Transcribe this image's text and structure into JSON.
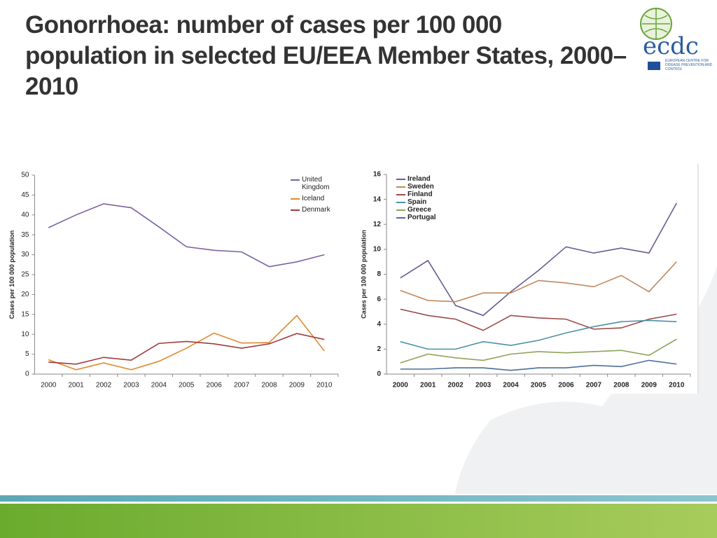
{
  "title": "Gonorrhoea: number of cases per 100 000 population in selected EU/EEA Member States, 2000–2010",
  "logo": {
    "text": "ecdc",
    "subtitle": "EUROPEAN CENTRE FOR DISEASE PREVENTION AND CONTROL"
  },
  "chart_data": [
    {
      "type": "line",
      "ylabel": "Cases per 100 000 population",
      "categories": [
        "2000",
        "2001",
        "2002",
        "2003",
        "2004",
        "2005",
        "2006",
        "2007",
        "2008",
        "2009",
        "2010"
      ],
      "ylim": [
        0,
        50
      ],
      "yticks": [
        0,
        5,
        10,
        15,
        20,
        25,
        30,
        35,
        40,
        45,
        50
      ],
      "legend": "upper right",
      "series": [
        {
          "name": "United Kingdom",
          "color": "#7b63a3",
          "values": [
            36.8,
            40,
            42.8,
            41.8,
            37,
            32,
            31.1,
            30.7,
            27,
            28.2,
            30
          ]
        },
        {
          "name": "Iceland",
          "color": "#e08a2e",
          "values": [
            3.6,
            1.1,
            2.8,
            1.1,
            3.2,
            6.5,
            10.3,
            7.8,
            7.9,
            14.7,
            5.8
          ]
        },
        {
          "name": "Denmark",
          "color": "#a33b3b",
          "values": [
            3,
            2.5,
            4.2,
            3.5,
            7.7,
            8.2,
            7.6,
            6.5,
            7.6,
            10.2,
            8.7
          ]
        }
      ]
    },
    {
      "type": "line",
      "ylabel": "Cases per 100 000 population",
      "categories": [
        "2000",
        "2001",
        "2002",
        "2003",
        "2004",
        "2005",
        "2006",
        "2007",
        "2008",
        "2009",
        "2010"
      ],
      "ylim": [
        0,
        16
      ],
      "yticks": [
        0,
        2,
        4,
        6,
        8,
        10,
        12,
        14,
        16
      ],
      "legend": "upper left",
      "series": [
        {
          "name": "Ireland",
          "color": "#6b5a91",
          "values": [
            7.7,
            9.1,
            5.5,
            4.7,
            6.6,
            8.3,
            10.2,
            9.7,
            10.1,
            9.7,
            13.7
          ]
        },
        {
          "name": "Sweden",
          "color": "#c0895e",
          "values": [
            6.7,
            5.9,
            5.8,
            6.5,
            6.5,
            7.5,
            7.3,
            7.0,
            7.9,
            6.6,
            9.0
          ]
        },
        {
          "name": "Finland",
          "color": "#9b4a4a",
          "values": [
            5.2,
            4.7,
            4.4,
            3.5,
            4.7,
            4.5,
            4.4,
            3.6,
            3.7,
            4.4,
            4.8
          ]
        },
        {
          "name": "Spain",
          "color": "#4e90a8",
          "values": [
            2.6,
            2.0,
            2.0,
            2.6,
            2.3,
            2.7,
            3.3,
            3.8,
            4.2,
            4.3,
            4.2
          ]
        },
        {
          "name": "Greece",
          "color": "#8ea45a",
          "values": [
            0.9,
            1.6,
            1.3,
            1.1,
            1.6,
            1.8,
            1.7,
            1.8,
            1.9,
            1.5,
            2.8
          ]
        },
        {
          "name": "Portugal",
          "color": "#4a6f9a",
          "values": [
            0.4,
            0.4,
            0.5,
            0.5,
            0.3,
            0.5,
            0.5,
            0.7,
            0.6,
            1.1,
            0.8
          ]
        }
      ]
    }
  ]
}
